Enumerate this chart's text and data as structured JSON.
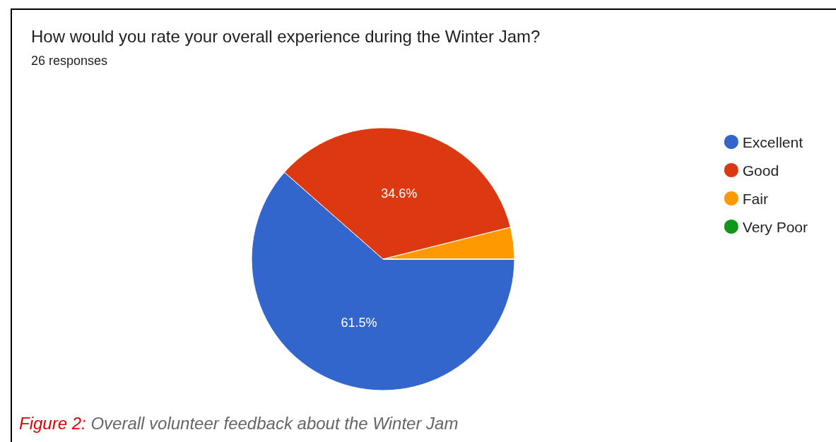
{
  "chart_data": {
    "type": "pie",
    "title": "How would you rate your overall experience during the Winter Jam?",
    "subtitle": "26 responses",
    "categories": [
      "Excellent",
      "Good",
      "Fair",
      "Very Poor"
    ],
    "values": [
      61.5,
      34.6,
      3.9,
      0
    ],
    "colors": [
      "#3366cc",
      "#dc3912",
      "#ff9900",
      "#109618"
    ],
    "value_labels": [
      "61.5%",
      "34.6%",
      null,
      null
    ],
    "legend": "right",
    "annotations": [
      "Figure 2: Overall volunteer feedback about the Winter Jam"
    ]
  }
}
